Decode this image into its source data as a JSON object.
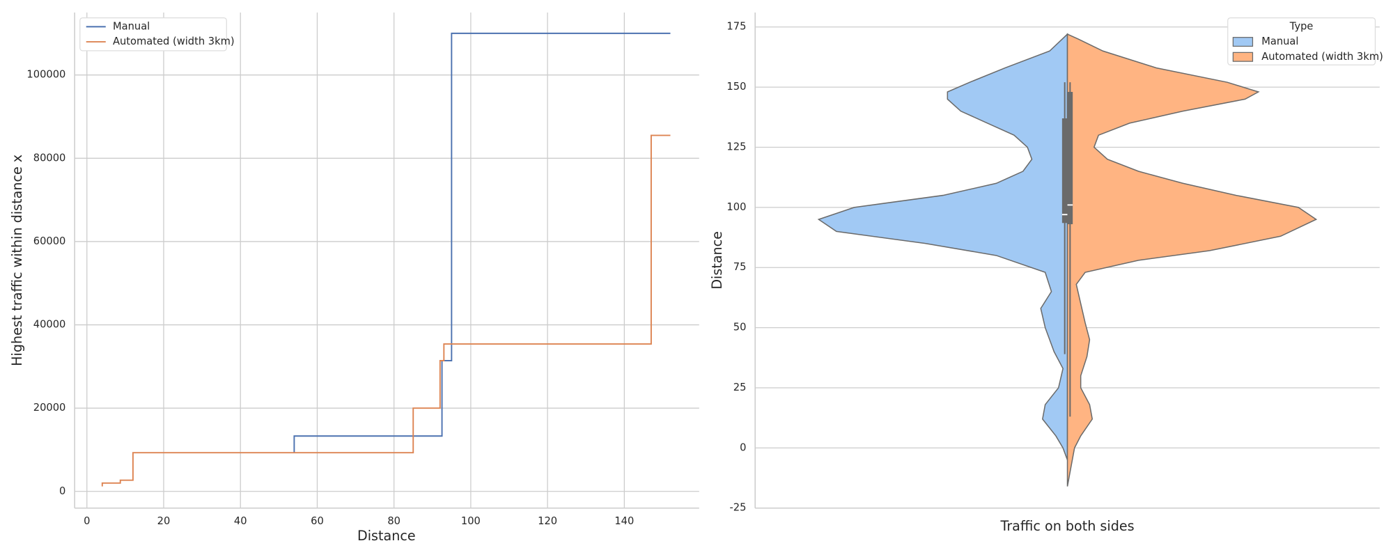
{
  "chart_data": [
    {
      "type": "step",
      "xlabel": "Distance",
      "ylabel": "Highest traffic within distance x",
      "xlim": [
        -3.2,
        159.5
      ],
      "ylim": [
        -4000,
        115000
      ],
      "xticks": [
        0,
        20,
        40,
        60,
        80,
        100,
        120,
        140
      ],
      "yticks": [
        0,
        20000,
        40000,
        60000,
        80000,
        100000
      ],
      "grid": true,
      "legend": "upper left",
      "series": [
        {
          "name": "Manual",
          "color": "#4c72b0",
          "x": [
            54,
            54,
            92.5,
            95,
            152
          ],
          "values": [
            9400,
            13300,
            31400,
            110000,
            110000
          ]
        },
        {
          "name": "Automated (width 3km)",
          "color": "#dd8452",
          "x": [
            4,
            4,
            8.7,
            12,
            85,
            92,
            93,
            147,
            152
          ],
          "values": [
            1200,
            2000,
            2700,
            9300,
            20000,
            31400,
            35400,
            85500,
            85500
          ]
        }
      ]
    },
    {
      "type": "violin",
      "xlabel": "Traffic on both sides",
      "ylabel": "Distance",
      "ylim": [
        -25,
        181
      ],
      "yticks": [
        -25,
        0,
        25,
        50,
        75,
        100,
        125,
        150,
        175
      ],
      "grid": true,
      "legend": "upper right",
      "legend_title": "Type",
      "series": [
        {
          "name": "Manual",
          "color": "#a1c9f4",
          "y": [
            -5,
            0,
            5,
            12,
            18,
            25,
            33,
            40,
            50,
            58,
            65,
            73,
            80,
            85,
            90,
            95,
            100,
            105,
            110,
            115,
            120,
            125,
            130,
            135,
            140,
            145,
            148,
            152,
            158,
            165,
            172
          ],
          "density": [
            0,
            5,
            13,
            28,
            25,
            10,
            5,
            15,
            25,
            30,
            18,
            25,
            80,
            160,
            260,
            280,
            240,
            140,
            80,
            50,
            40,
            45,
            60,
            90,
            120,
            135,
            135,
            110,
            70,
            20,
            0
          ],
          "box": {
            "whisker_low": 39,
            "q1": 93.5,
            "median": 97,
            "q3": 137,
            "whisker_high": 152
          }
        },
        {
          "name": "Automated (width 3km)",
          "color": "#ffb482",
          "y": [
            -16,
            -10,
            0,
            5,
            12,
            18,
            25,
            30,
            38,
            45,
            52,
            60,
            68,
            73,
            78,
            82,
            88,
            95,
            100,
            105,
            110,
            115,
            120,
            125,
            130,
            135,
            140,
            145,
            148,
            152,
            158,
            165,
            170,
            172
          ],
          "density": [
            0,
            3,
            8,
            15,
            28,
            25,
            15,
            15,
            22,
            25,
            20,
            15,
            10,
            20,
            80,
            160,
            240,
            280,
            260,
            190,
            130,
            80,
            45,
            30,
            35,
            70,
            130,
            200,
            215,
            180,
            100,
            40,
            12,
            0
          ],
          "box": {
            "whisker_low": 13,
            "q1": 93,
            "median": 101,
            "q3": 148,
            "whisker_high": 152
          }
        }
      ]
    }
  ]
}
